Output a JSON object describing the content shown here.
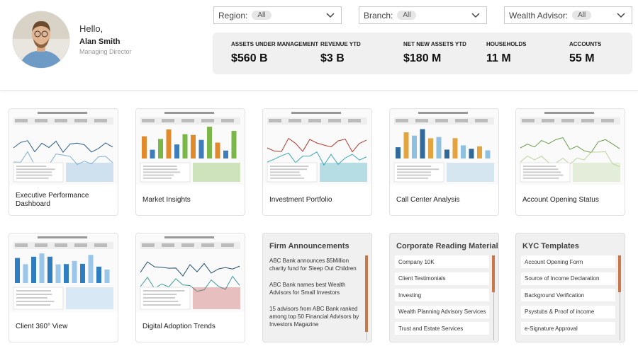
{
  "user": {
    "greeting": "Hello,",
    "name": "Alan Smith",
    "role": "Managing Director"
  },
  "filters": [
    {
      "label": "Region:",
      "value": "All"
    },
    {
      "label": "Branch:",
      "value": "All"
    },
    {
      "label": "Wealth Advisor:",
      "value": "All"
    }
  ],
  "kpis": [
    {
      "label": "ASSETS UNDER MANAGEMENT",
      "value": "$560 B"
    },
    {
      "label": "REVENUE YTD",
      "value": "$3 B"
    },
    {
      "label": "NET NEW ASSETS YTD",
      "value": "$180 M"
    },
    {
      "label": "HOUSEHOLDS",
      "value": "11 M"
    },
    {
      "label": "ACCOUNTS",
      "value": "55 M"
    }
  ],
  "dashboards": [
    {
      "title": "Executive Performance Dashboard"
    },
    {
      "title": "Market Insights"
    },
    {
      "title": "Investment Portfolio"
    },
    {
      "title": "Call Center Analysis"
    },
    {
      "title": "Account Opening Status"
    },
    {
      "title": "Client 360° View"
    },
    {
      "title": "Digital Adoption Trends"
    }
  ],
  "panels": [
    {
      "title": "Firm Announcements",
      "items": [
        "ABC Bank announces $5Million charity fund for Sleep Out Children",
        "ABC Bank names best Wealth Advisors for Small Investors",
        "15 advisors from ABC Bank ranked among top 50 Financial Advisors by Investors Magazine"
      ]
    },
    {
      "title": "Corporate Reading Material",
      "items": [
        "Company 10K",
        "Client Testimonials",
        "Investing",
        "Wealth Planning Advisory Services",
        "Trust and Estate Services"
      ]
    },
    {
      "title": "KYC Templates",
      "items": [
        "Account Opening Form",
        "Source of Income Declaration",
        "Background Verification",
        "Psystubs & Proof of income",
        "e-Signature Approval"
      ]
    }
  ]
}
